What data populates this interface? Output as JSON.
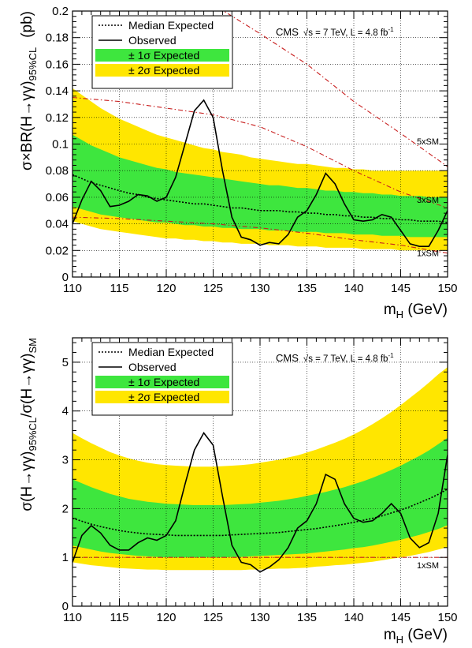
{
  "chart_data": [
    {
      "type": "line",
      "xlim": [
        110,
        150
      ],
      "ylim": [
        0,
        0.2
      ],
      "xticks": [
        110,
        115,
        120,
        125,
        130,
        135,
        140,
        145,
        150
      ],
      "yticks": [
        0,
        0.02,
        0.04,
        0.06,
        0.08,
        0.1,
        0.12,
        0.14,
        0.16,
        0.18,
        0.2
      ],
      "ytick_labels": [
        "0",
        "0.02",
        "0.04",
        "0.06",
        "0.08",
        "0.1",
        "0.12",
        "0.14",
        "0.16",
        "0.18",
        "0.2"
      ],
      "xlabel_main": "m",
      "xlabel_sub": "H",
      "xlabel_unit": " (GeV)",
      "ylabel_main": "σ×BR(H→γγ)",
      "ylabel_sub": "95%CL",
      "ylabel_unit": "(pb)",
      "grid": true,
      "legend_position": "top-left",
      "legend": [
        "Median Expected",
        "Observed",
        "± 1σ Expected",
        "± 2σ Expected"
      ],
      "annotation_cms": "CMS",
      "annotation_energy": "√s = 7 TeV, L = 4.8 fb",
      "annotation_lumi_exp": "-1",
      "colors": {
        "band_1sigma": "#3ee63e",
        "band_2sigma": "#ffe600",
        "sm_curves": "#c81e1e"
      },
      "x": [
        110,
        111,
        112,
        113,
        114,
        115,
        116,
        117,
        118,
        119,
        120,
        121,
        122,
        123,
        124,
        125,
        126,
        127,
        128,
        129,
        130,
        131,
        132,
        133,
        134,
        135,
        136,
        137,
        138,
        139,
        140,
        141,
        142,
        143,
        144,
        145,
        146,
        147,
        148,
        149,
        150
      ],
      "series": [
        {
          "name": "Median Expected",
          "values": [
            0.077,
            0.074,
            0.071,
            0.069,
            0.067,
            0.065,
            0.063,
            0.062,
            0.06,
            0.059,
            0.058,
            0.057,
            0.056,
            0.055,
            0.055,
            0.054,
            0.053,
            0.052,
            0.052,
            0.051,
            0.05,
            0.05,
            0.05,
            0.049,
            0.049,
            0.048,
            0.048,
            0.047,
            0.047,
            0.046,
            0.046,
            0.045,
            0.045,
            0.044,
            0.044,
            0.043,
            0.043,
            0.042,
            0.042,
            0.042,
            0.041
          ]
        },
        {
          "name": "Observed",
          "values": [
            0.04,
            0.058,
            0.072,
            0.065,
            0.053,
            0.054,
            0.057,
            0.062,
            0.061,
            0.057,
            0.06,
            0.075,
            0.1,
            0.125,
            0.133,
            0.12,
            0.08,
            0.045,
            0.03,
            0.028,
            0.024,
            0.026,
            0.025,
            0.032,
            0.045,
            0.05,
            0.062,
            0.078,
            0.07,
            0.055,
            0.043,
            0.042,
            0.043,
            0.047,
            0.045,
            0.035,
            0.025,
            0.023,
            0.023,
            0.035,
            0.05
          ]
        },
        {
          "name": "± 1σ Expected",
          "lower": [
            0.053,
            0.051,
            0.049,
            0.047,
            0.046,
            0.045,
            0.044,
            0.043,
            0.042,
            0.041,
            0.041,
            0.04,
            0.039,
            0.039,
            0.038,
            0.038,
            0.037,
            0.037,
            0.036,
            0.036,
            0.036,
            0.035,
            0.035,
            0.035,
            0.034,
            0.034,
            0.034,
            0.033,
            0.033,
            0.033,
            0.032,
            0.032,
            0.032,
            0.031,
            0.031,
            0.031,
            0.03,
            0.03,
            0.03,
            0.03,
            0.03
          ],
          "upper": [
            0.107,
            0.103,
            0.099,
            0.096,
            0.093,
            0.09,
            0.088,
            0.086,
            0.084,
            0.082,
            0.081,
            0.079,
            0.078,
            0.077,
            0.076,
            0.075,
            0.074,
            0.073,
            0.072,
            0.071,
            0.07,
            0.069,
            0.069,
            0.068,
            0.067,
            0.067,
            0.066,
            0.065,
            0.065,
            0.064,
            0.064,
            0.063,
            0.063,
            0.062,
            0.062,
            0.061,
            0.061,
            0.061,
            0.06,
            0.06,
            0.06
          ]
        },
        {
          "name": "± 2σ Expected",
          "lower": [
            0.042,
            0.04,
            0.038,
            0.036,
            0.035,
            0.034,
            0.033,
            0.032,
            0.031,
            0.03,
            0.029,
            0.029,
            0.028,
            0.028,
            0.027,
            0.027,
            0.026,
            0.026,
            0.025,
            0.025,
            0.025,
            0.024,
            0.024,
            0.024,
            0.023,
            0.023,
            0.023,
            0.022,
            0.022,
            0.022,
            0.022,
            0.021,
            0.021,
            0.021,
            0.021,
            0.02,
            0.02,
            0.02,
            0.02,
            0.02,
            0.02
          ],
          "upper": [
            0.142,
            0.137,
            0.132,
            0.127,
            0.123,
            0.119,
            0.116,
            0.113,
            0.11,
            0.107,
            0.105,
            0.103,
            0.101,
            0.099,
            0.097,
            0.096,
            0.094,
            0.093,
            0.092,
            0.09,
            0.089,
            0.088,
            0.087,
            0.086,
            0.085,
            0.085,
            0.084,
            0.083,
            0.082,
            0.082,
            0.081,
            0.081,
            0.08,
            0.08,
            0.08,
            0.08,
            0.08,
            0.08,
            0.08,
            0.08,
            0.08
          ]
        }
      ],
      "sm_curves": [
        {
          "label": "5xSM",
          "x": [
            110,
            115,
            120,
            125,
            130,
            135,
            140,
            145,
            150
          ],
          "values": [
            0.295,
            0.265,
            0.238,
            0.205,
            0.183,
            0.16,
            0.132,
            0.108,
            0.083
          ]
        },
        {
          "label": "3xSM",
          "x": [
            110,
            115,
            120,
            125,
            130,
            135,
            140,
            145,
            150
          ],
          "values": [
            0.135,
            0.132,
            0.127,
            0.122,
            0.113,
            0.098,
            0.08,
            0.064,
            0.052
          ]
        },
        {
          "label": "1xSM",
          "x": [
            110,
            115,
            120,
            125,
            130,
            135,
            140,
            145,
            150
          ],
          "values": [
            0.045,
            0.044,
            0.042,
            0.04,
            0.037,
            0.033,
            0.028,
            0.024,
            0.018
          ]
        }
      ]
    },
    {
      "type": "line",
      "xlim": [
        110,
        150
      ],
      "ylim": [
        0,
        5.5
      ],
      "xticks": [
        110,
        115,
        120,
        125,
        130,
        135,
        140,
        145,
        150
      ],
      "yticks": [
        0,
        1,
        2,
        3,
        4,
        5
      ],
      "ytick_labels": [
        "0",
        "1",
        "2",
        "3",
        "4",
        "5"
      ],
      "xlabel_main": "m",
      "xlabel_sub": "H",
      "xlabel_unit": " (GeV)",
      "ylabel_part1": "σ(H→γγ)",
      "ylabel_sub1": "95%CL",
      "ylabel_part2": "/σ(H→γγ)",
      "ylabel_sub2": "SM",
      "grid": true,
      "legend_position": "top-left",
      "legend": [
        "Median Expected",
        "Observed",
        "± 1σ Expected",
        "± 2σ Expected"
      ],
      "annotation_cms": "CMS",
      "annotation_energy": "√s = 7 TeV, L = 4.8 fb",
      "annotation_lumi_exp": "-1",
      "colors": {
        "band_1sigma": "#3ee63e",
        "band_2sigma": "#ffe600",
        "sm_curves": "#c81e1e"
      },
      "x": [
        110,
        111,
        112,
        113,
        114,
        115,
        116,
        117,
        118,
        119,
        120,
        121,
        122,
        123,
        124,
        125,
        126,
        127,
        128,
        129,
        130,
        131,
        132,
        133,
        134,
        135,
        136,
        137,
        138,
        139,
        140,
        141,
        142,
        143,
        144,
        145,
        146,
        147,
        148,
        149,
        150
      ],
      "series": [
        {
          "name": "Median Expected",
          "values": [
            1.8,
            1.74,
            1.68,
            1.63,
            1.59,
            1.55,
            1.52,
            1.5,
            1.48,
            1.47,
            1.46,
            1.45,
            1.45,
            1.45,
            1.45,
            1.45,
            1.45,
            1.46,
            1.47,
            1.48,
            1.49,
            1.5,
            1.51,
            1.53,
            1.55,
            1.57,
            1.59,
            1.62,
            1.65,
            1.68,
            1.72,
            1.76,
            1.8,
            1.85,
            1.91,
            1.97,
            2.04,
            2.12,
            2.2,
            2.29,
            2.4
          ]
        },
        {
          "name": "Observed",
          "values": [
            0.9,
            1.45,
            1.65,
            1.5,
            1.25,
            1.15,
            1.15,
            1.3,
            1.4,
            1.35,
            1.45,
            1.75,
            2.5,
            3.2,
            3.55,
            3.3,
            2.25,
            1.25,
            0.9,
            0.85,
            0.7,
            0.8,
            0.95,
            1.2,
            1.6,
            1.75,
            2.1,
            2.7,
            2.6,
            2.1,
            1.8,
            1.72,
            1.75,
            1.9,
            2.1,
            1.9,
            1.4,
            1.2,
            1.3,
            1.9,
            3.1
          ]
        },
        {
          "name": "± 1σ Expected",
          "lower": [
            1.24,
            1.2,
            1.16,
            1.12,
            1.09,
            1.07,
            1.05,
            1.03,
            1.02,
            1.01,
            1,
            1,
            1,
            1,
            1,
            1,
            1,
            1.01,
            1.01,
            1.02,
            1.03,
            1.04,
            1.05,
            1.06,
            1.07,
            1.08,
            1.1,
            1.12,
            1.14,
            1.16,
            1.19,
            1.21,
            1.24,
            1.28,
            1.32,
            1.36,
            1.41,
            1.46,
            1.52,
            1.58,
            1.66
          ],
          "upper": [
            2.6,
            2.52,
            2.44,
            2.37,
            2.3,
            2.25,
            2.2,
            2.17,
            2.14,
            2.12,
            2.1,
            2.09,
            2.08,
            2.07,
            2.07,
            2.07,
            2.07,
            2.08,
            2.09,
            2.1,
            2.12,
            2.14,
            2.16,
            2.19,
            2.22,
            2.26,
            2.3,
            2.34,
            2.39,
            2.44,
            2.5,
            2.56,
            2.63,
            2.71,
            2.79,
            2.88,
            2.98,
            3.08,
            3.19,
            3.32,
            3.45
          ]
        },
        {
          "name": "± 2σ Expected",
          "lower": [
            0.9,
            0.87,
            0.84,
            0.82,
            0.8,
            0.78,
            0.77,
            0.76,
            0.75,
            0.75,
            0.74,
            0.74,
            0.74,
            0.74,
            0.74,
            0.74,
            0.74,
            0.74,
            0.74,
            0.75,
            0.75,
            0.76,
            0.77,
            0.77,
            0.78,
            0.79,
            0.81,
            0.82,
            0.84,
            0.85,
            0.87,
            0.89,
            0.91,
            0.94,
            0.97,
            1,
            1.03,
            1.07,
            1.11,
            1.16,
            1.21
          ],
          "upper": [
            3.55,
            3.44,
            3.34,
            3.25,
            3.16,
            3.09,
            3.03,
            2.98,
            2.94,
            2.91,
            2.89,
            2.88,
            2.87,
            2.86,
            2.86,
            2.86,
            2.87,
            2.88,
            2.89,
            2.91,
            2.94,
            2.97,
            3,
            3.05,
            3.09,
            3.15,
            3.21,
            3.28,
            3.35,
            3.43,
            3.52,
            3.62,
            3.73,
            3.85,
            3.98,
            4.12,
            4.27,
            4.42,
            4.58,
            4.75,
            4.9
          ]
        }
      ],
      "sm_curves": [
        {
          "label": "1xSM",
          "x": [
            110,
            150
          ],
          "values": [
            1,
            1
          ]
        }
      ]
    }
  ]
}
